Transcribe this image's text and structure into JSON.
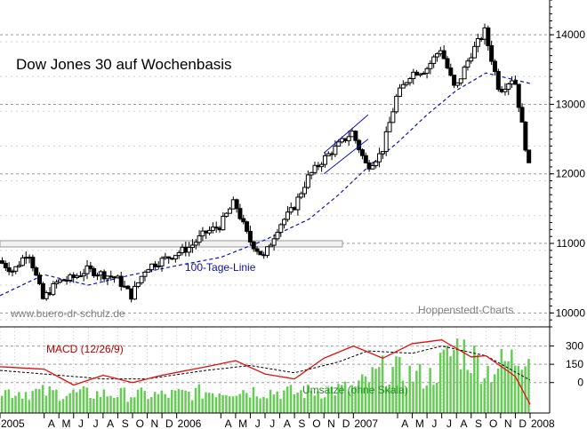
{
  "chart_data": {
    "type": "candlestick",
    "title": "Dow Jones 30 auf Wochenbasis",
    "watermark_left": "www.buero-dr-schulz.de",
    "watermark_right": "Hoppenstedt-Charts",
    "ma_label": "100-Tage-Linie",
    "macd_label": "MACD (12/26/9)",
    "volume_label": "Umsätze (ohne Skala)",
    "colors": {
      "price": "#000000",
      "ma": "#1010c0",
      "macd": "#e01010",
      "signal": "#000000",
      "volume": "#66cc55",
      "grid": "#9a9a9a",
      "annotation_ma": "#1010a0",
      "annotation_macd": "#c00000",
      "annotation_vol": "#209020",
      "watermark": "#808080"
    },
    "price_axis": {
      "min": 9800,
      "max": 14500,
      "ticks": [
        10000,
        11000,
        12000,
        13000,
        14000
      ],
      "tick_labels": [
        "10000",
        "11000",
        "12000",
        "13000",
        "14000"
      ]
    },
    "macd_axis": {
      "min": -250,
      "max": 450,
      "ticks": [
        300,
        150,
        0
      ],
      "tick_labels": [
        "300",
        "150",
        "0"
      ]
    },
    "x_axis": {
      "labels": [
        "2005",
        "A",
        "M",
        "J",
        "J",
        "A",
        "S",
        "O",
        "N",
        "D",
        "2006",
        "A",
        "M",
        "J",
        "J",
        "A",
        "S",
        "O",
        "N",
        "D",
        "2007",
        "A",
        "M",
        "J",
        "J",
        "A",
        "S",
        "O",
        "N",
        "D",
        "2008"
      ],
      "start": "2005-01",
      "end": "2008-01"
    },
    "price_waypoints": [
      {
        "date": "2005-01",
        "value": 10750
      },
      {
        "date": "2005-02",
        "value": 10600
      },
      {
        "date": "2005-03",
        "value": 10900
      },
      {
        "date": "2005-04",
        "value": 10200
      },
      {
        "date": "2005-05",
        "value": 10450
      },
      {
        "date": "2005-06",
        "value": 10500
      },
      {
        "date": "2005-07",
        "value": 10620
      },
      {
        "date": "2005-08",
        "value": 10560
      },
      {
        "date": "2005-09",
        "value": 10500
      },
      {
        "date": "2005-10",
        "value": 10250
      },
      {
        "date": "2005-11",
        "value": 10650
      },
      {
        "date": "2005-12",
        "value": 10750
      },
      {
        "date": "2006-01",
        "value": 10850
      },
      {
        "date": "2006-02",
        "value": 10950
      },
      {
        "date": "2006-03",
        "value": 11150
      },
      {
        "date": "2006-04",
        "value": 11250
      },
      {
        "date": "2006-05",
        "value": 11600
      },
      {
        "date": "2006-06",
        "value": 11050
      },
      {
        "date": "2006-07",
        "value": 10800
      },
      {
        "date": "2006-08",
        "value": 11250
      },
      {
        "date": "2006-09",
        "value": 11500
      },
      {
        "date": "2006-10",
        "value": 11950
      },
      {
        "date": "2006-11",
        "value": 12200
      },
      {
        "date": "2006-12",
        "value": 12400
      },
      {
        "date": "2007-01",
        "value": 12600
      },
      {
        "date": "2007-02",
        "value": 12100
      },
      {
        "date": "2007-03",
        "value": 12300
      },
      {
        "date": "2007-04",
        "value": 13100
      },
      {
        "date": "2007-05",
        "value": 13450
      },
      {
        "date": "2007-06",
        "value": 13500
      },
      {
        "date": "2007-07",
        "value": 13800
      },
      {
        "date": "2007-08",
        "value": 13200
      },
      {
        "date": "2007-09",
        "value": 13700
      },
      {
        "date": "2007-10",
        "value": 14050
      },
      {
        "date": "2007-11",
        "value": 13200
      },
      {
        "date": "2007-12",
        "value": 13400
      },
      {
        "date": "2008-01",
        "value": 12100
      }
    ],
    "ma_waypoints": [
      {
        "date": "2005-01",
        "value": 10250
      },
      {
        "date": "2005-04",
        "value": 10550
      },
      {
        "date": "2005-07",
        "value": 10400
      },
      {
        "date": "2005-10",
        "value": 10550
      },
      {
        "date": "2006-01",
        "value": 10680
      },
      {
        "date": "2006-04",
        "value": 10800
      },
      {
        "date": "2006-07",
        "value": 11050
      },
      {
        "date": "2006-10",
        "value": 11350
      },
      {
        "date": "2006-12",
        "value": 11700
      },
      {
        "date": "2007-02",
        "value": 12100
      },
      {
        "date": "2007-04",
        "value": 12450
      },
      {
        "date": "2007-06",
        "value": 12850
      },
      {
        "date": "2007-08",
        "value": 13200
      },
      {
        "date": "2007-10",
        "value": 13450
      },
      {
        "date": "2008-01",
        "value": 13300
      }
    ],
    "macd_waypoints": [
      {
        "date": "2005-01",
        "value": 130
      },
      {
        "date": "2005-04",
        "value": 110
      },
      {
        "date": "2005-06",
        "value": -20
      },
      {
        "date": "2005-08",
        "value": 60
      },
      {
        "date": "2005-10",
        "value": 0
      },
      {
        "date": "2005-12",
        "value": 60
      },
      {
        "date": "2006-03",
        "value": 130
      },
      {
        "date": "2006-05",
        "value": 180
      },
      {
        "date": "2006-07",
        "value": 70
      },
      {
        "date": "2006-09",
        "value": 30
      },
      {
        "date": "2006-11",
        "value": 200
      },
      {
        "date": "2007-01",
        "value": 300
      },
      {
        "date": "2007-03",
        "value": 200
      },
      {
        "date": "2007-05",
        "value": 320
      },
      {
        "date": "2007-07",
        "value": 350
      },
      {
        "date": "2007-09",
        "value": 210
      },
      {
        "date": "2007-10",
        "value": 220
      },
      {
        "date": "2007-12",
        "value": 50
      },
      {
        "date": "2008-01",
        "value": -180
      }
    ],
    "signal_waypoints": [
      {
        "date": "2005-01",
        "value": 100
      },
      {
        "date": "2005-05",
        "value": 60
      },
      {
        "date": "2005-08",
        "value": 30
      },
      {
        "date": "2005-11",
        "value": 30
      },
      {
        "date": "2006-03",
        "value": 100
      },
      {
        "date": "2006-06",
        "value": 140
      },
      {
        "date": "2006-09",
        "value": 80
      },
      {
        "date": "2006-12",
        "value": 170
      },
      {
        "date": "2007-02",
        "value": 260
      },
      {
        "date": "2007-05",
        "value": 240
      },
      {
        "date": "2007-07",
        "value": 300
      },
      {
        "date": "2007-10",
        "value": 220
      },
      {
        "date": "2008-01",
        "value": 20
      }
    ],
    "volume_waypoints": [
      {
        "date": "2005-01",
        "value": 0.28
      },
      {
        "date": "2005-06",
        "value": 0.25
      },
      {
        "date": "2005-12",
        "value": 0.23
      },
      {
        "date": "2006-05",
        "value": 0.3
      },
      {
        "date": "2006-09",
        "value": 0.26
      },
      {
        "date": "2007-01",
        "value": 0.32
      },
      {
        "date": "2007-03",
        "value": 0.55
      },
      {
        "date": "2007-06",
        "value": 0.45
      },
      {
        "date": "2007-08",
        "value": 0.85
      },
      {
        "date": "2007-10",
        "value": 0.55
      },
      {
        "date": "2007-12",
        "value": 0.7
      },
      {
        "date": "2008-01",
        "value": 1.0
      }
    ],
    "support_zone": {
      "from": "2005-01",
      "to": "2007-01",
      "low": 10700,
      "high": 10780
    },
    "channel": {
      "lower": [
        [
          "2006-11",
          12000
        ],
        [
          "2007-02",
          12500
        ]
      ],
      "upper": [
        [
          "2006-11",
          12300
        ],
        [
          "2007-02",
          12850
        ]
      ]
    },
    "grid": "dashed horizontal"
  }
}
